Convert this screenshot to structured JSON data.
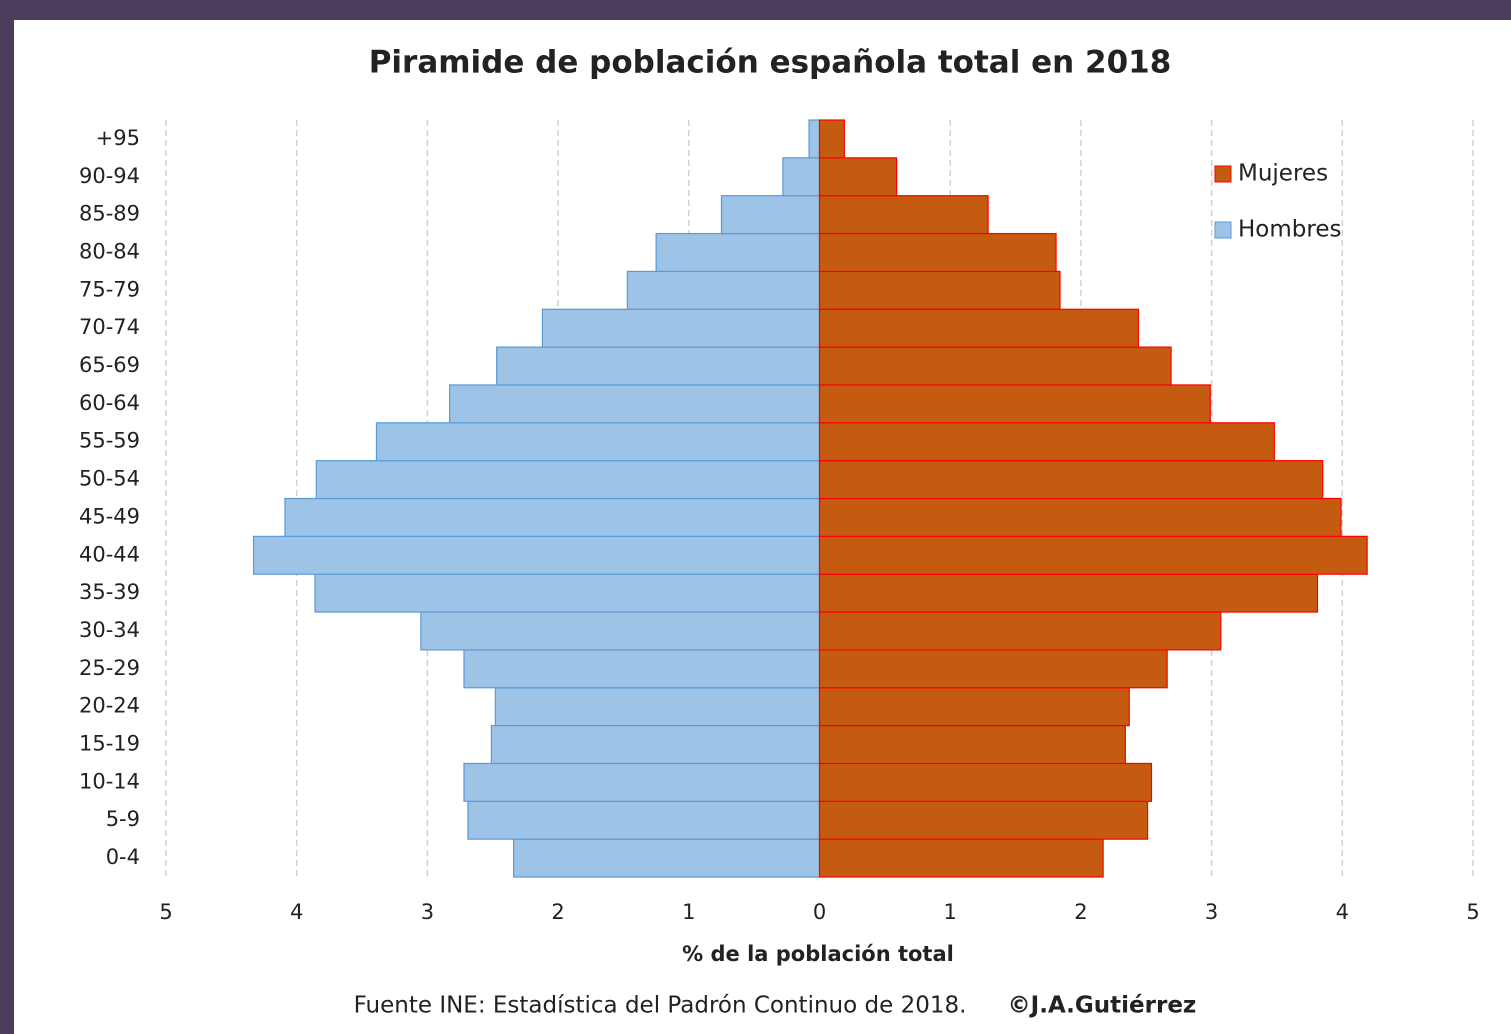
{
  "chart_data": {
    "type": "bar",
    "orientation": "horizontal",
    "stacked": true,
    "title": "Piramide de población española total en 2018",
    "xlabel": "% de la población total",
    "source": "Fuente INE: Estadística del Padrón Continuo de 2018.",
    "credit": "©J.A.Gutiérrez",
    "categories": [
      "0-4",
      "5-9",
      "10-14",
      "15-19",
      "20-24",
      "25-29",
      "30-34",
      "35-39",
      "40-44",
      "45-49",
      "50-54",
      "55-59",
      "60-64",
      "65-69",
      "70-74",
      "75-79",
      "80-84",
      "85-89",
      "90-94",
      "+95"
    ],
    "series": [
      {
        "name": "Hombres",
        "color": "#9dc3e6",
        "edge": "#5b9bd5",
        "values": [
          -2.34,
          -2.69,
          -2.72,
          -2.51,
          -2.48,
          -2.72,
          -3.05,
          -3.86,
          -4.33,
          -4.09,
          -3.85,
          -3.39,
          -2.83,
          -2.47,
          -2.12,
          -1.47,
          -1.25,
          -0.75,
          -0.28,
          -0.08
        ]
      },
      {
        "name": "Mujeres",
        "color": "#c55a11",
        "edge": "#ff0000",
        "values": [
          2.17,
          2.51,
          2.54,
          2.34,
          2.37,
          2.66,
          3.07,
          3.81,
          4.19,
          3.99,
          3.85,
          3.48,
          2.99,
          2.69,
          2.44,
          1.84,
          1.81,
          1.29,
          0.59,
          0.19
        ]
      }
    ],
    "xlim": [
      -5,
      5
    ],
    "xticks": [
      {
        "value": -5,
        "label": "5"
      },
      {
        "value": -4,
        "label": "4"
      },
      {
        "value": -3,
        "label": "3"
      },
      {
        "value": -2,
        "label": "2"
      },
      {
        "value": -1,
        "label": "1"
      },
      0,
      1,
      2,
      3,
      4,
      5
    ],
    "grid": true,
    "legend": "upper right"
  }
}
